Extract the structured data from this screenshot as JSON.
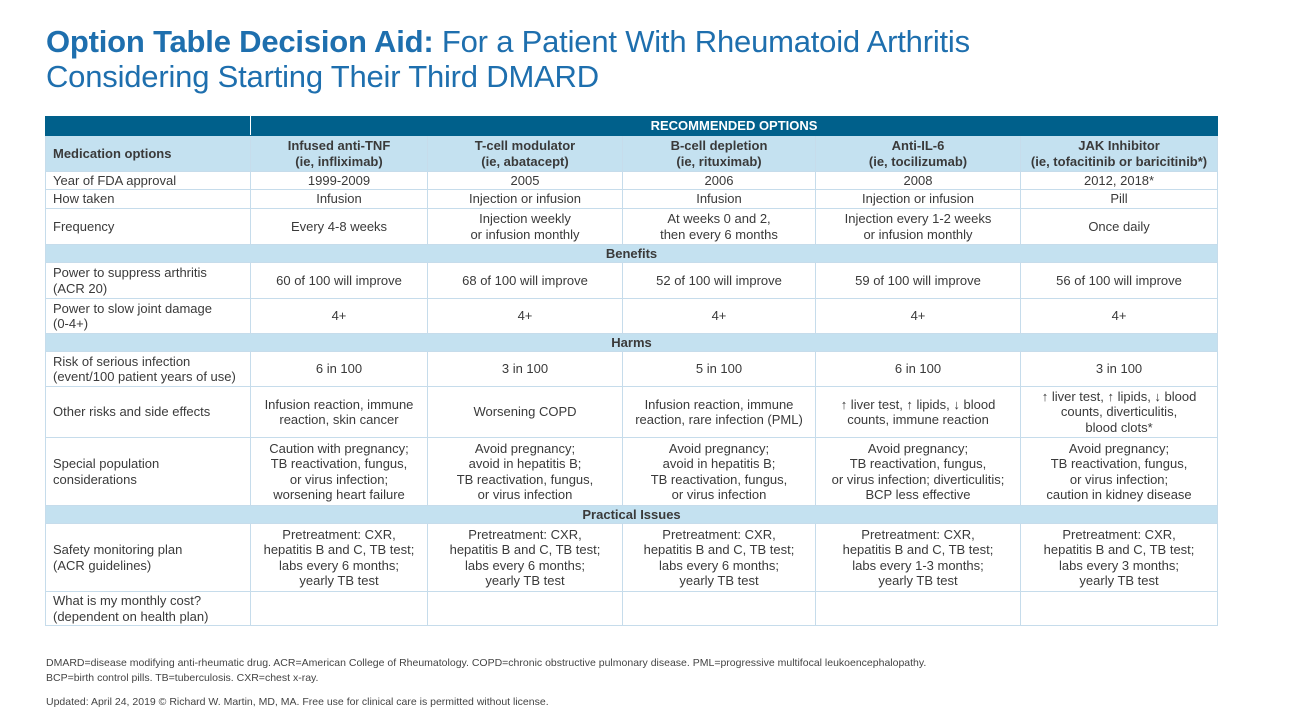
{
  "title": {
    "bold": "Option Table Decision Aid:",
    "line1_rest": " For a Patient With Rheumatoid Arthritis",
    "line2": "Considering Starting Their Third DMARD"
  },
  "colors": {
    "title": "#1e6fae",
    "header_dark": "#00608b",
    "header_light": "#c4e1f0"
  },
  "table": {
    "recommended_label": "RECOMMENDED OPTIONS",
    "row_header_label": "Medication options",
    "columns": [
      "Infused anti-TNF\n(ie, infliximab)",
      "T-cell modulator\n(ie, abatacept)",
      "B-cell depletion\n(ie, rituximab)",
      "Anti-IL-6\n(ie, tocilizumab)",
      "JAK Inhibitor\n(ie, tofacitinib or baricitinib*)"
    ],
    "rows": [
      {
        "label": "Year of FDA approval",
        "cells": [
          "1999-2009",
          "2005",
          "2006",
          "2008",
          "2012, 2018*"
        ]
      },
      {
        "label": "How taken",
        "cells": [
          "Infusion",
          "Injection or infusion",
          "Infusion",
          "Injection or infusion",
          "Pill"
        ]
      },
      {
        "label": "Frequency",
        "cells": [
          "Every 4-8 weeks",
          "Injection weekly\nor infusion monthly",
          "At weeks 0 and 2,\nthen every 6 months",
          "Injection every 1-2 weeks\nor infusion monthly",
          "Once daily"
        ]
      },
      {
        "section": "Benefits"
      },
      {
        "label": "Power to suppress arthritis\n(ACR 20)",
        "cells": [
          "60 of 100 will improve",
          "68 of 100 will improve",
          "52 of 100 will improve",
          "59 of 100 will improve",
          "56 of 100 will improve"
        ]
      },
      {
        "label": "Power to slow joint damage\n(0-4+)",
        "cells": [
          "4+",
          "4+",
          "4+",
          "4+",
          "4+"
        ]
      },
      {
        "section": "Harms"
      },
      {
        "label": "Risk of serious infection\n(event/100 patient years of use)",
        "cells": [
          "6 in 100",
          "3 in 100",
          "5 in 100",
          "6 in 100",
          "3 in 100"
        ]
      },
      {
        "label": "Other risks and side effects",
        "cells": [
          "Infusion reaction, immune\nreaction, skin cancer",
          "Worsening COPD",
          "Infusion reaction, immune\nreaction, rare infection (PML)",
          "↑ liver test, ↑ lipids, ↓ blood\ncounts, immune reaction",
          "↑ liver test, ↑ lipids, ↓ blood\ncounts, diverticulitis,\nblood clots*"
        ]
      },
      {
        "label": "Special population\nconsiderations",
        "cells": [
          "Caution with pregnancy;\nTB reactivation, fungus,\nor virus infection;\nworsening heart failure",
          "Avoid pregnancy;\navoid in hepatitis B;\nTB reactivation, fungus,\nor virus infection",
          "Avoid pregnancy;\navoid in hepatitis B;\nTB reactivation, fungus,\nor virus infection",
          "Avoid pregnancy;\nTB reactivation, fungus,\nor virus infection; diverticulitis;\nBCP less effective",
          "Avoid pregnancy;\nTB reactivation, fungus,\nor virus infection;\ncaution in kidney disease"
        ]
      },
      {
        "section": "Practical Issues"
      },
      {
        "label": "Safety monitoring plan\n(ACR guidelines)",
        "cells": [
          "Pretreatment: CXR,\nhepatitis B and C, TB test;\nlabs every 6 months;\nyearly TB test",
          "Pretreatment: CXR,\nhepatitis B and C, TB test;\nlabs every 6 months;\nyearly TB test",
          "Pretreatment: CXR,\nhepatitis B and C, TB test;\nlabs every 6 months;\nyearly TB test",
          "Pretreatment: CXR,\nhepatitis B and C, TB test;\nlabs every 1-3 months;\nyearly TB test",
          "Pretreatment: CXR,\nhepatitis B and C, TB test;\nlabs every 3 months;\nyearly TB test"
        ]
      },
      {
        "label": "What is my monthly cost?\n(dependent on health plan)",
        "cells": [
          "",
          "",
          "",
          "",
          ""
        ]
      }
    ]
  },
  "footnotes": {
    "line1": "DMARD=disease modifying anti-rheumatic drug. ACR=American College of Rheumatology. COPD=chronic obstructive pulmonary disease. PML=progressive multifocal leukoencephalopathy.",
    "line2": "BCP=birth control pills. TB=tuberculosis. CXR=chest x-ray.",
    "updated": "Updated: April 24, 2019 © Richard W. Martin, MD, MA. Free use for clinical care is permitted without license."
  }
}
